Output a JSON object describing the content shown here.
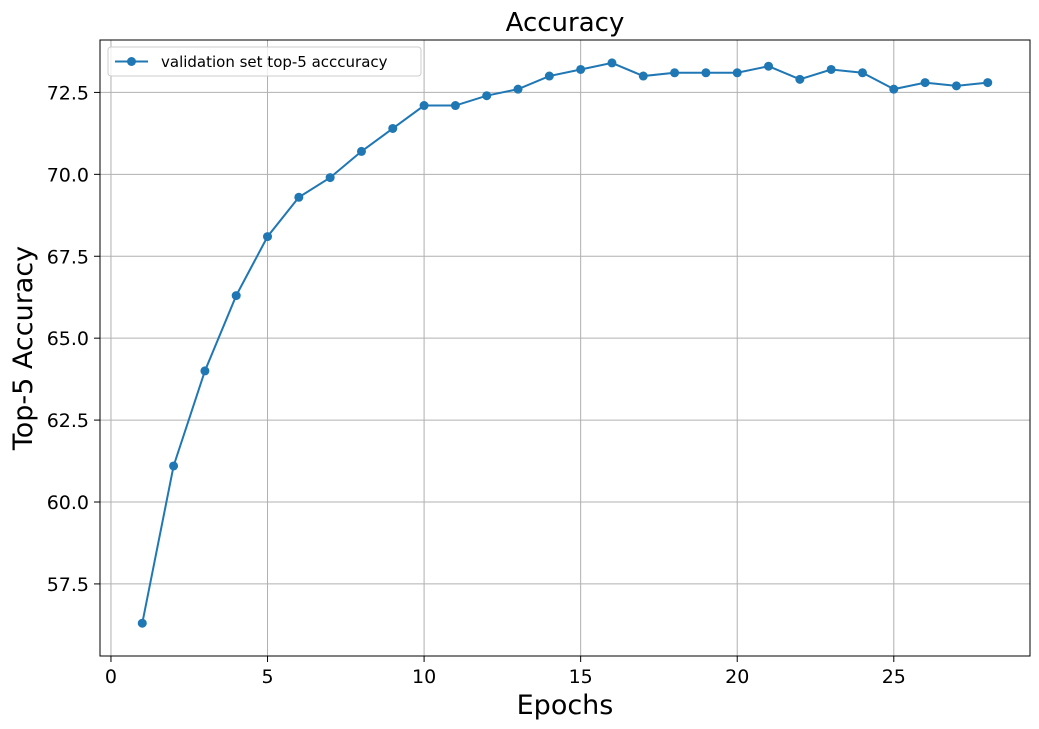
{
  "chart_data": {
    "type": "line",
    "title": "Accuracy",
    "xlabel": "Epochs",
    "ylabel": "Top-5 Accuracy",
    "xlim": [
      -0.35,
      29.35
    ],
    "ylim": [
      55.3,
      74.1
    ],
    "x_ticks": [
      0,
      5,
      10,
      15,
      20,
      25
    ],
    "y_ticks": [
      57.5,
      60.0,
      62.5,
      65.0,
      67.5,
      70.0,
      72.5
    ],
    "x_tick_labels": [
      "0",
      "5",
      "10",
      "15",
      "20",
      "25"
    ],
    "y_tick_labels": [
      "57.5",
      "60.0",
      "62.5",
      "65.0",
      "67.5",
      "70.0",
      "72.5"
    ],
    "grid": true,
    "legend_position": "top-left",
    "series": [
      {
        "name": "validation set top-5 acccuracy",
        "color": "#1f77b4",
        "marker": "circle",
        "x": [
          1,
          2,
          3,
          4,
          5,
          6,
          7,
          8,
          9,
          10,
          11,
          12,
          13,
          14,
          15,
          16,
          17,
          18,
          19,
          20,
          21,
          22,
          23,
          24,
          25,
          26,
          27,
          28
        ],
        "y": [
          56.3,
          61.1,
          64.0,
          66.3,
          68.1,
          69.3,
          69.9,
          70.7,
          71.4,
          72.1,
          72.1,
          72.4,
          72.6,
          73.0,
          73.2,
          73.4,
          73.0,
          73.1,
          73.1,
          73.1,
          73.3,
          72.9,
          73.2,
          73.1,
          72.6,
          72.8,
          72.7,
          72.8
        ]
      }
    ]
  }
}
